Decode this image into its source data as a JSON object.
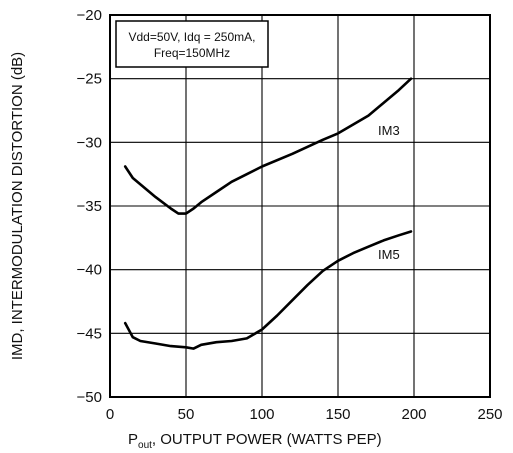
{
  "chart_data": {
    "type": "line",
    "title": "",
    "xlabel": {
      "p": "P",
      "sub": "out",
      "rest": ", OUTPUT POWER (WATTS PEP)"
    },
    "ylabel": "IMD, INTERMODULATION DISTORTION (dB)",
    "xlim": [
      0,
      250
    ],
    "ylim": [
      -50,
      -20
    ],
    "x_ticks": [
      "0",
      "50",
      "100",
      "150",
      "200",
      "250"
    ],
    "y_ticks": [
      "−20",
      "−25",
      "−30",
      "−35",
      "−40",
      "−45",
      "−50"
    ],
    "grid": true,
    "conditions": [
      "Vdd=50V, Idq = 250mA,",
      "Freq=150MHz"
    ],
    "series": [
      {
        "name": "IM3",
        "x": [
          10,
          15,
          20,
          30,
          40,
          45,
          50,
          55,
          60,
          70,
          80,
          90,
          100,
          120,
          140,
          150,
          160,
          170,
          180,
          190,
          198
        ],
        "y": [
          -31.9,
          -32.8,
          -33.3,
          -34.3,
          -35.2,
          -35.6,
          -35.6,
          -35.2,
          -34.7,
          -33.9,
          -33.1,
          -32.5,
          -31.9,
          -30.9,
          -29.8,
          -29.3,
          -28.6,
          -27.9,
          -26.9,
          -25.9,
          -25.0
        ]
      },
      {
        "name": "IM5",
        "x": [
          10,
          15,
          20,
          30,
          40,
          50,
          55,
          60,
          70,
          80,
          90,
          100,
          110,
          120,
          130,
          140,
          150,
          160,
          170,
          180,
          190,
          198
        ],
        "y": [
          -44.2,
          -45.3,
          -45.6,
          -45.8,
          -46.0,
          -46.1,
          -46.2,
          -45.9,
          -45.7,
          -45.6,
          -45.4,
          -44.7,
          -43.6,
          -42.4,
          -41.2,
          -40.1,
          -39.3,
          -38.7,
          -38.2,
          -37.7,
          -37.3,
          -37.0
        ]
      }
    ]
  }
}
